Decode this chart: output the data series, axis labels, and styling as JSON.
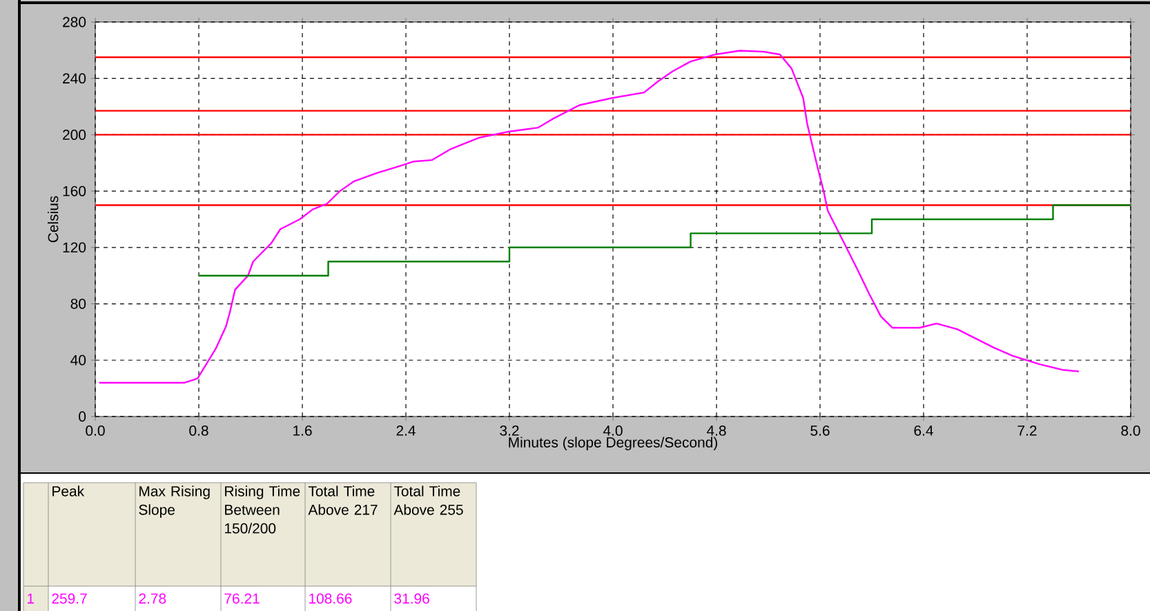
{
  "chart_data": {
    "type": "line",
    "xlabel": "Minutes (slope Degrees/Second)",
    "ylabel": "Celsius",
    "xlim": [
      0,
      8
    ],
    "ylim": [
      0,
      280
    ],
    "xticks": [
      {
        "value": 0,
        "label": "0.0"
      },
      0.8,
      1.6,
      2.4,
      3.2,
      {
        "value": 4,
        "label": "4.0"
      },
      4.8,
      5.6,
      6.4,
      7.2,
      {
        "value": 8,
        "label": "8.0"
      }
    ],
    "yticks": [
      0,
      40,
      80,
      120,
      160,
      200,
      240,
      280
    ],
    "grid": true,
    "ref_lines": [
      {
        "axis": "y",
        "value": 150,
        "color": "#ff0000"
      },
      {
        "axis": "y",
        "value": 200,
        "color": "#ff0000"
      },
      {
        "axis": "y",
        "value": 217,
        "color": "#ff0000"
      },
      {
        "axis": "y",
        "value": 255,
        "color": "#ff0000"
      }
    ],
    "series": [
      {
        "color": "#ff00ff",
        "x": [
          0.03,
          0.69,
          0.79,
          0.93,
          1.01,
          1.04,
          1.08,
          1.18,
          1.22,
          1.36,
          1.43,
          1.58,
          1.68,
          1.79,
          1.89,
          2.0,
          2.18,
          2.36,
          2.46,
          2.6,
          2.75,
          2.97,
          3.18,
          3.42,
          3.53,
          3.74,
          3.99,
          4.24,
          4.35,
          4.46,
          4.6,
          4.79,
          4.98,
          5.16,
          5.29,
          5.38,
          5.47,
          5.5,
          5.57,
          5.63,
          5.66,
          5.77,
          5.88,
          5.98,
          6.07,
          6.16,
          6.37,
          6.5,
          6.66,
          6.94,
          7.09,
          7.3,
          7.48,
          7.6
        ],
        "values": [
          24,
          24,
          27,
          48,
          64,
          74,
          90,
          100,
          110,
          123,
          133,
          140,
          147,
          151,
          160,
          167,
          173,
          178,
          181,
          182,
          190,
          198,
          202,
          205,
          211,
          221,
          226,
          230,
          238,
          245,
          252,
          257,
          259.7,
          259,
          257,
          247,
          226,
          208,
          181,
          159,
          146,
          126,
          106,
          87,
          71,
          63,
          63,
          66,
          62,
          49,
          43,
          37,
          33,
          32
        ]
      },
      {
        "type": "step",
        "color": "#008000",
        "x": [
          0.8,
          1.8,
          3.2,
          4.6,
          6.0,
          7.4,
          8.0
        ],
        "values": [
          100,
          110,
          120,
          130,
          140,
          150,
          150
        ]
      }
    ],
    "annotations": [
      "Peak",
      "Max Rising Slope",
      "Rising Time Between 150/200",
      "Total Time Above 217",
      "Total Time Above 255",
      "1",
      "259.7",
      "2.78",
      "76.21",
      "108.66",
      "31.96"
    ]
  }
}
